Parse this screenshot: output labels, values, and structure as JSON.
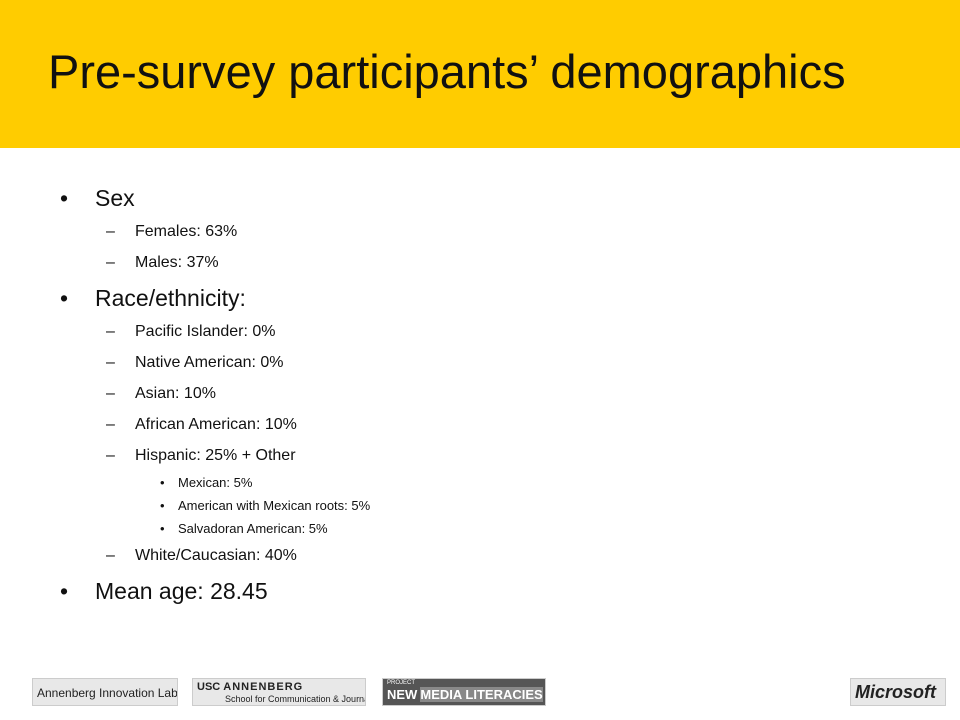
{
  "header": {
    "title": "Pre-survey participants’ demographics"
  },
  "bullets": [
    {
      "text": "Sex",
      "items": [
        {
          "text": "Females: 63%"
        },
        {
          "text": "Males: 37%"
        }
      ]
    },
    {
      "text": "Race/ethnicity:",
      "items": [
        {
          "text": "Pacific Islander: 0%"
        },
        {
          "text": "Native American: 0%"
        },
        {
          "text": "Asian: 10%"
        },
        {
          "text": "African American: 10%"
        },
        {
          "text": "Hispanic: 25% + Other",
          "items": [
            {
              "text": "Mexican: 5%"
            },
            {
              "text": "American with Mexican roots: 5%"
            },
            {
              "text": "Salvadoran American: 5%"
            }
          ]
        },
        {
          "text": "White/Caucasian: 40%"
        }
      ]
    },
    {
      "text": "Mean age: 28.45"
    }
  ],
  "footer": {
    "logos": [
      {
        "text": "Annenberg Innovation Lab"
      },
      {
        "text": "USC",
        "name": "ANNENBERG",
        "sub": "School for Communication & Journalism"
      },
      {
        "text": "PROJECT",
        "name": "NEW",
        "sub": "MEDIA LITERACIES"
      },
      {
        "text": "Microsoft"
      }
    ]
  }
}
